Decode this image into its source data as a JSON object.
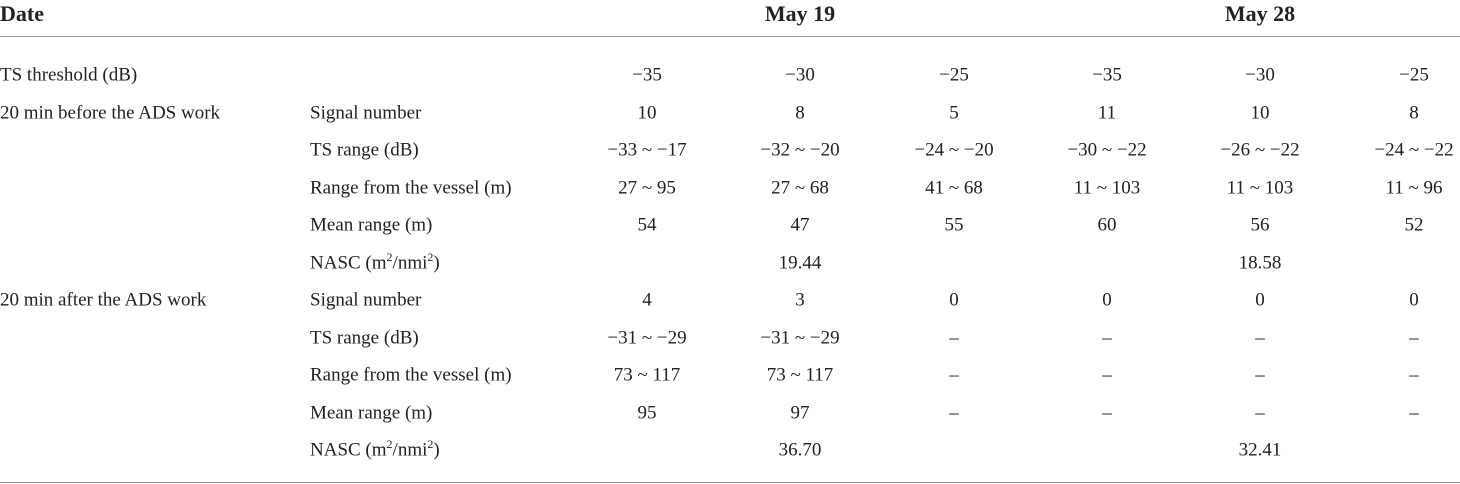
{
  "header": {
    "date": "Date",
    "groups": [
      "May 19",
      "May 28"
    ]
  },
  "threshold": {
    "label": "TS threshold (dB)",
    "values": [
      "−35",
      "−30",
      "−25",
      "−35",
      "−30",
      "−25"
    ]
  },
  "sections": [
    {
      "label": "20 min before the ADS work",
      "rows": [
        {
          "label": [
            "Signal number"
          ],
          "values": [
            "10",
            "8",
            "5",
            "11",
            "10",
            "8"
          ]
        },
        {
          "label": [
            "TS range (dB)"
          ],
          "values": [
            "−33 ~ −17",
            "−32 ~ −20",
            "−24 ~ −20",
            "−30 ~ −22",
            "−26 ~ −22",
            "−24 ~ −22"
          ]
        },
        {
          "label": [
            "Range from the vessel (m)"
          ],
          "values": [
            "27 ~ 95",
            "27 ~ 68",
            "41 ~ 68",
            "11 ~ 103",
            "11 ~ 103",
            "11 ~ 96"
          ]
        },
        {
          "label": [
            "Mean range (m)"
          ],
          "values": [
            "54",
            "47",
            "55",
            "60",
            "56",
            "52"
          ]
        },
        {
          "label": [
            "NASC (m",
            "2",
            "/nmi",
            "2",
            ")"
          ],
          "values": [
            "19.44",
            "18.58"
          ]
        }
      ]
    },
    {
      "label": "20 min after the ADS work",
      "rows": [
        {
          "label": [
            "Signal number"
          ],
          "values": [
            "4",
            "3",
            "0",
            "0",
            "0",
            "0"
          ]
        },
        {
          "label": [
            "TS range (dB)"
          ],
          "values": [
            "−31 ~ −29",
            "−31 ~ −29",
            "–",
            "–",
            "–",
            "–"
          ]
        },
        {
          "label": [
            "Range from the vessel (m)"
          ],
          "values": [
            "73 ~ 117",
            "73 ~ 117",
            "–",
            "–",
            "–",
            "–"
          ]
        },
        {
          "label": [
            "Mean range (m)"
          ],
          "values": [
            "95",
            "97",
            "–",
            "–",
            "–",
            "–"
          ]
        },
        {
          "label": [
            "NASC (m",
            "2",
            "/nmi",
            "2",
            ")"
          ],
          "values": [
            "36.70",
            "32.41"
          ]
        }
      ]
    }
  ]
}
